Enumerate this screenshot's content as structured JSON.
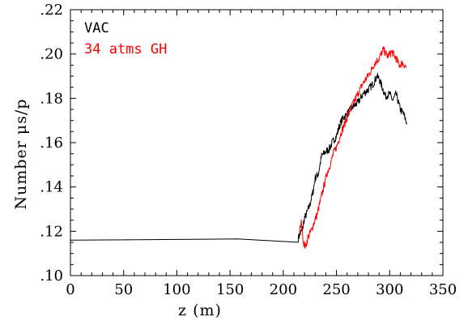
{
  "chart_data": {
    "type": "line",
    "xlabel": "z (m)",
    "ylabel": "Number μs/p",
    "xlim": [
      0,
      350
    ],
    "ylim": [
      0.1,
      0.22
    ],
    "x_ticks": [
      0,
      50,
      100,
      150,
      200,
      250,
      300,
      350
    ],
    "x_tick_labels": [
      "0",
      "50",
      "100",
      "150",
      "200",
      "250",
      "300",
      "350"
    ],
    "y_ticks": [
      0.1,
      0.12,
      0.14,
      0.16,
      0.18,
      0.2,
      0.22
    ],
    "y_tick_labels": [
      ".10",
      ".12",
      ".14",
      ".16",
      ".18",
      ".20",
      ".22"
    ],
    "grid": false,
    "legend_placement": "top-left",
    "series": [
      {
        "name": "VAC",
        "color": "#000000",
        "x": [
          0,
          100,
          214,
          216,
          218,
          220,
          222,
          225,
          228,
          230,
          233,
          236,
          240,
          243,
          246,
          250,
          253,
          256,
          260,
          265,
          270,
          275,
          280,
          285,
          288,
          290,
          293,
          296,
          300,
          303,
          306,
          310,
          313,
          316
        ],
        "y": [
          0.116,
          0.1163,
          0.1168,
          0.119,
          0.121,
          0.126,
          0.128,
          0.132,
          0.138,
          0.144,
          0.146,
          0.154,
          0.156,
          0.157,
          0.16,
          0.163,
          0.168,
          0.171,
          0.173,
          0.176,
          0.178,
          0.182,
          0.184,
          0.187,
          0.19,
          0.189,
          0.185,
          0.181,
          0.182,
          0.179,
          0.182,
          0.175,
          0.173,
          0.169
        ]
      },
      {
        "name": "34 atms GH",
        "color": "#ff0000",
        "x": [
          215,
          217,
          219,
          221,
          223,
          226,
          229,
          232,
          235,
          238,
          241,
          244,
          247,
          250,
          254,
          258,
          262,
          266,
          270,
          274,
          278,
          282,
          286,
          290,
          294,
          298,
          302,
          306,
          309,
          312,
          316
        ],
        "y": [
          0.119,
          0.124,
          0.115,
          0.113,
          0.117,
          0.12,
          0.124,
          0.128,
          0.134,
          0.14,
          0.146,
          0.15,
          0.155,
          0.158,
          0.164,
          0.169,
          0.174,
          0.178,
          0.182,
          0.186,
          0.189,
          0.192,
          0.196,
          0.198,
          0.202,
          0.199,
          0.201,
          0.198,
          0.195,
          0.196,
          0.194
        ]
      }
    ]
  }
}
